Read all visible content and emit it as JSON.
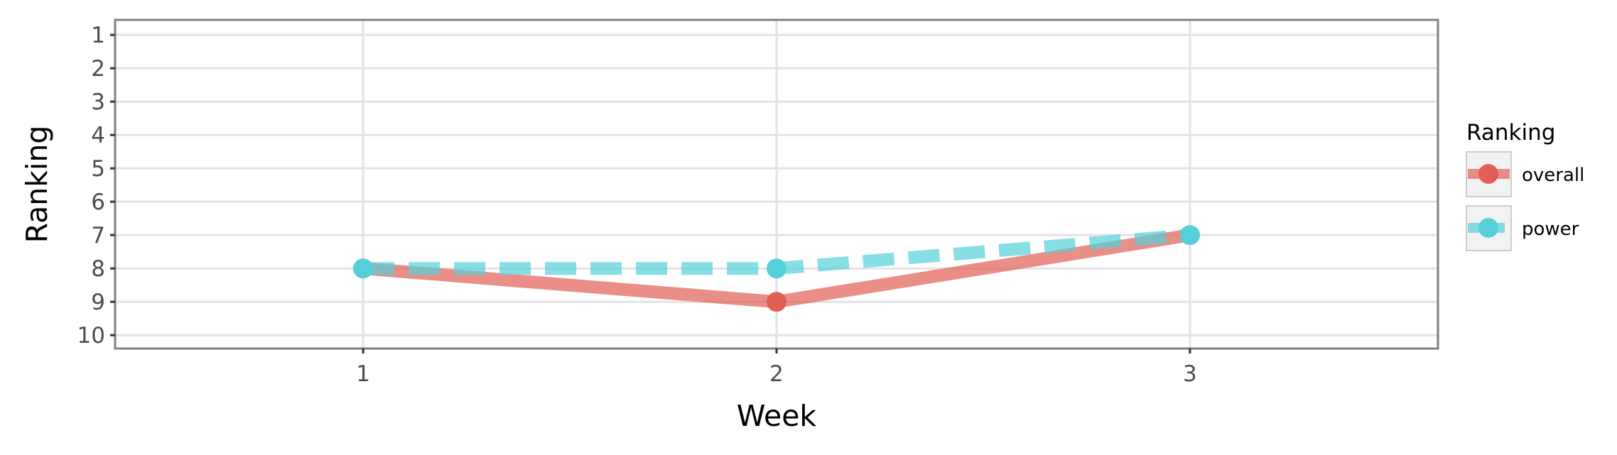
{
  "chart_data": {
    "type": "line",
    "xlabel": "Week",
    "ylabel": "Ranking",
    "x": [
      1,
      2,
      3
    ],
    "x_ticks": [
      "1",
      "2",
      "3"
    ],
    "xlim": [
      0.4,
      3.6
    ],
    "ylim": [
      10.4,
      0.55
    ],
    "y_ticks": [
      "1",
      "2",
      "3",
      "4",
      "5",
      "6",
      "7",
      "8",
      "9",
      "10"
    ],
    "y_reversed": true,
    "grid": true,
    "legend": {
      "title": "Ranking",
      "placement": "right"
    },
    "series": [
      {
        "name": "overall",
        "values": [
          8,
          9,
          7
        ],
        "color": "#E15F55",
        "line_style": "solid"
      },
      {
        "name": "power",
        "values": [
          8,
          8,
          7
        ],
        "color": "#55D0DA",
        "line_style": "dashed"
      }
    ]
  }
}
